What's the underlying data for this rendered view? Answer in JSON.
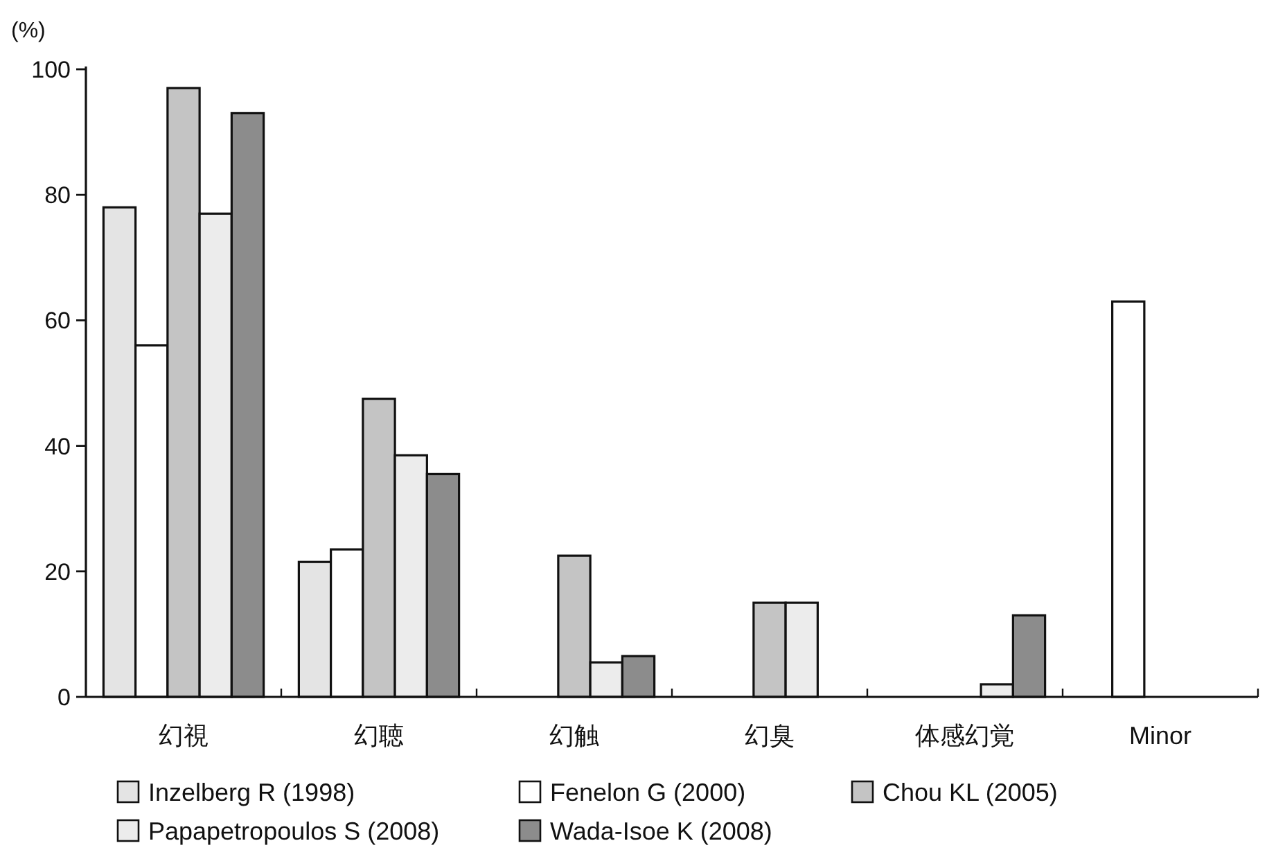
{
  "chart_data": {
    "type": "bar",
    "ylabel": "(%)",
    "categories": [
      "幻視",
      "幻聴",
      "幻触",
      "幻臭",
      "体感幻覚",
      "Minor"
    ],
    "series": [
      {
        "name": "Inzelberg R (1998)",
        "color": "#e4e4e4",
        "values": [
          78,
          21.5,
          null,
          null,
          null,
          null
        ]
      },
      {
        "name": "Fenelon G (2000)",
        "color": "#ffffff",
        "values": [
          56,
          23.5,
          null,
          null,
          null,
          63
        ]
      },
      {
        "name": "Chou KL (2005)",
        "color": "#c4c4c4",
        "values": [
          97,
          47.5,
          22.5,
          15,
          null,
          null
        ]
      },
      {
        "name": "Papapetropoulos S (2008)",
        "color": "#ececec",
        "values": [
          77,
          38.5,
          5.5,
          15,
          2,
          null
        ]
      },
      {
        "name": "Wada-Isoe K (2008)",
        "color": "#8c8c8c",
        "values": [
          93,
          35.5,
          6.5,
          null,
          13,
          null
        ]
      }
    ],
    "ylim": [
      0,
      100
    ],
    "yticks": [
      0,
      20,
      40,
      60,
      80,
      100
    ],
    "legend": "bottom"
  }
}
